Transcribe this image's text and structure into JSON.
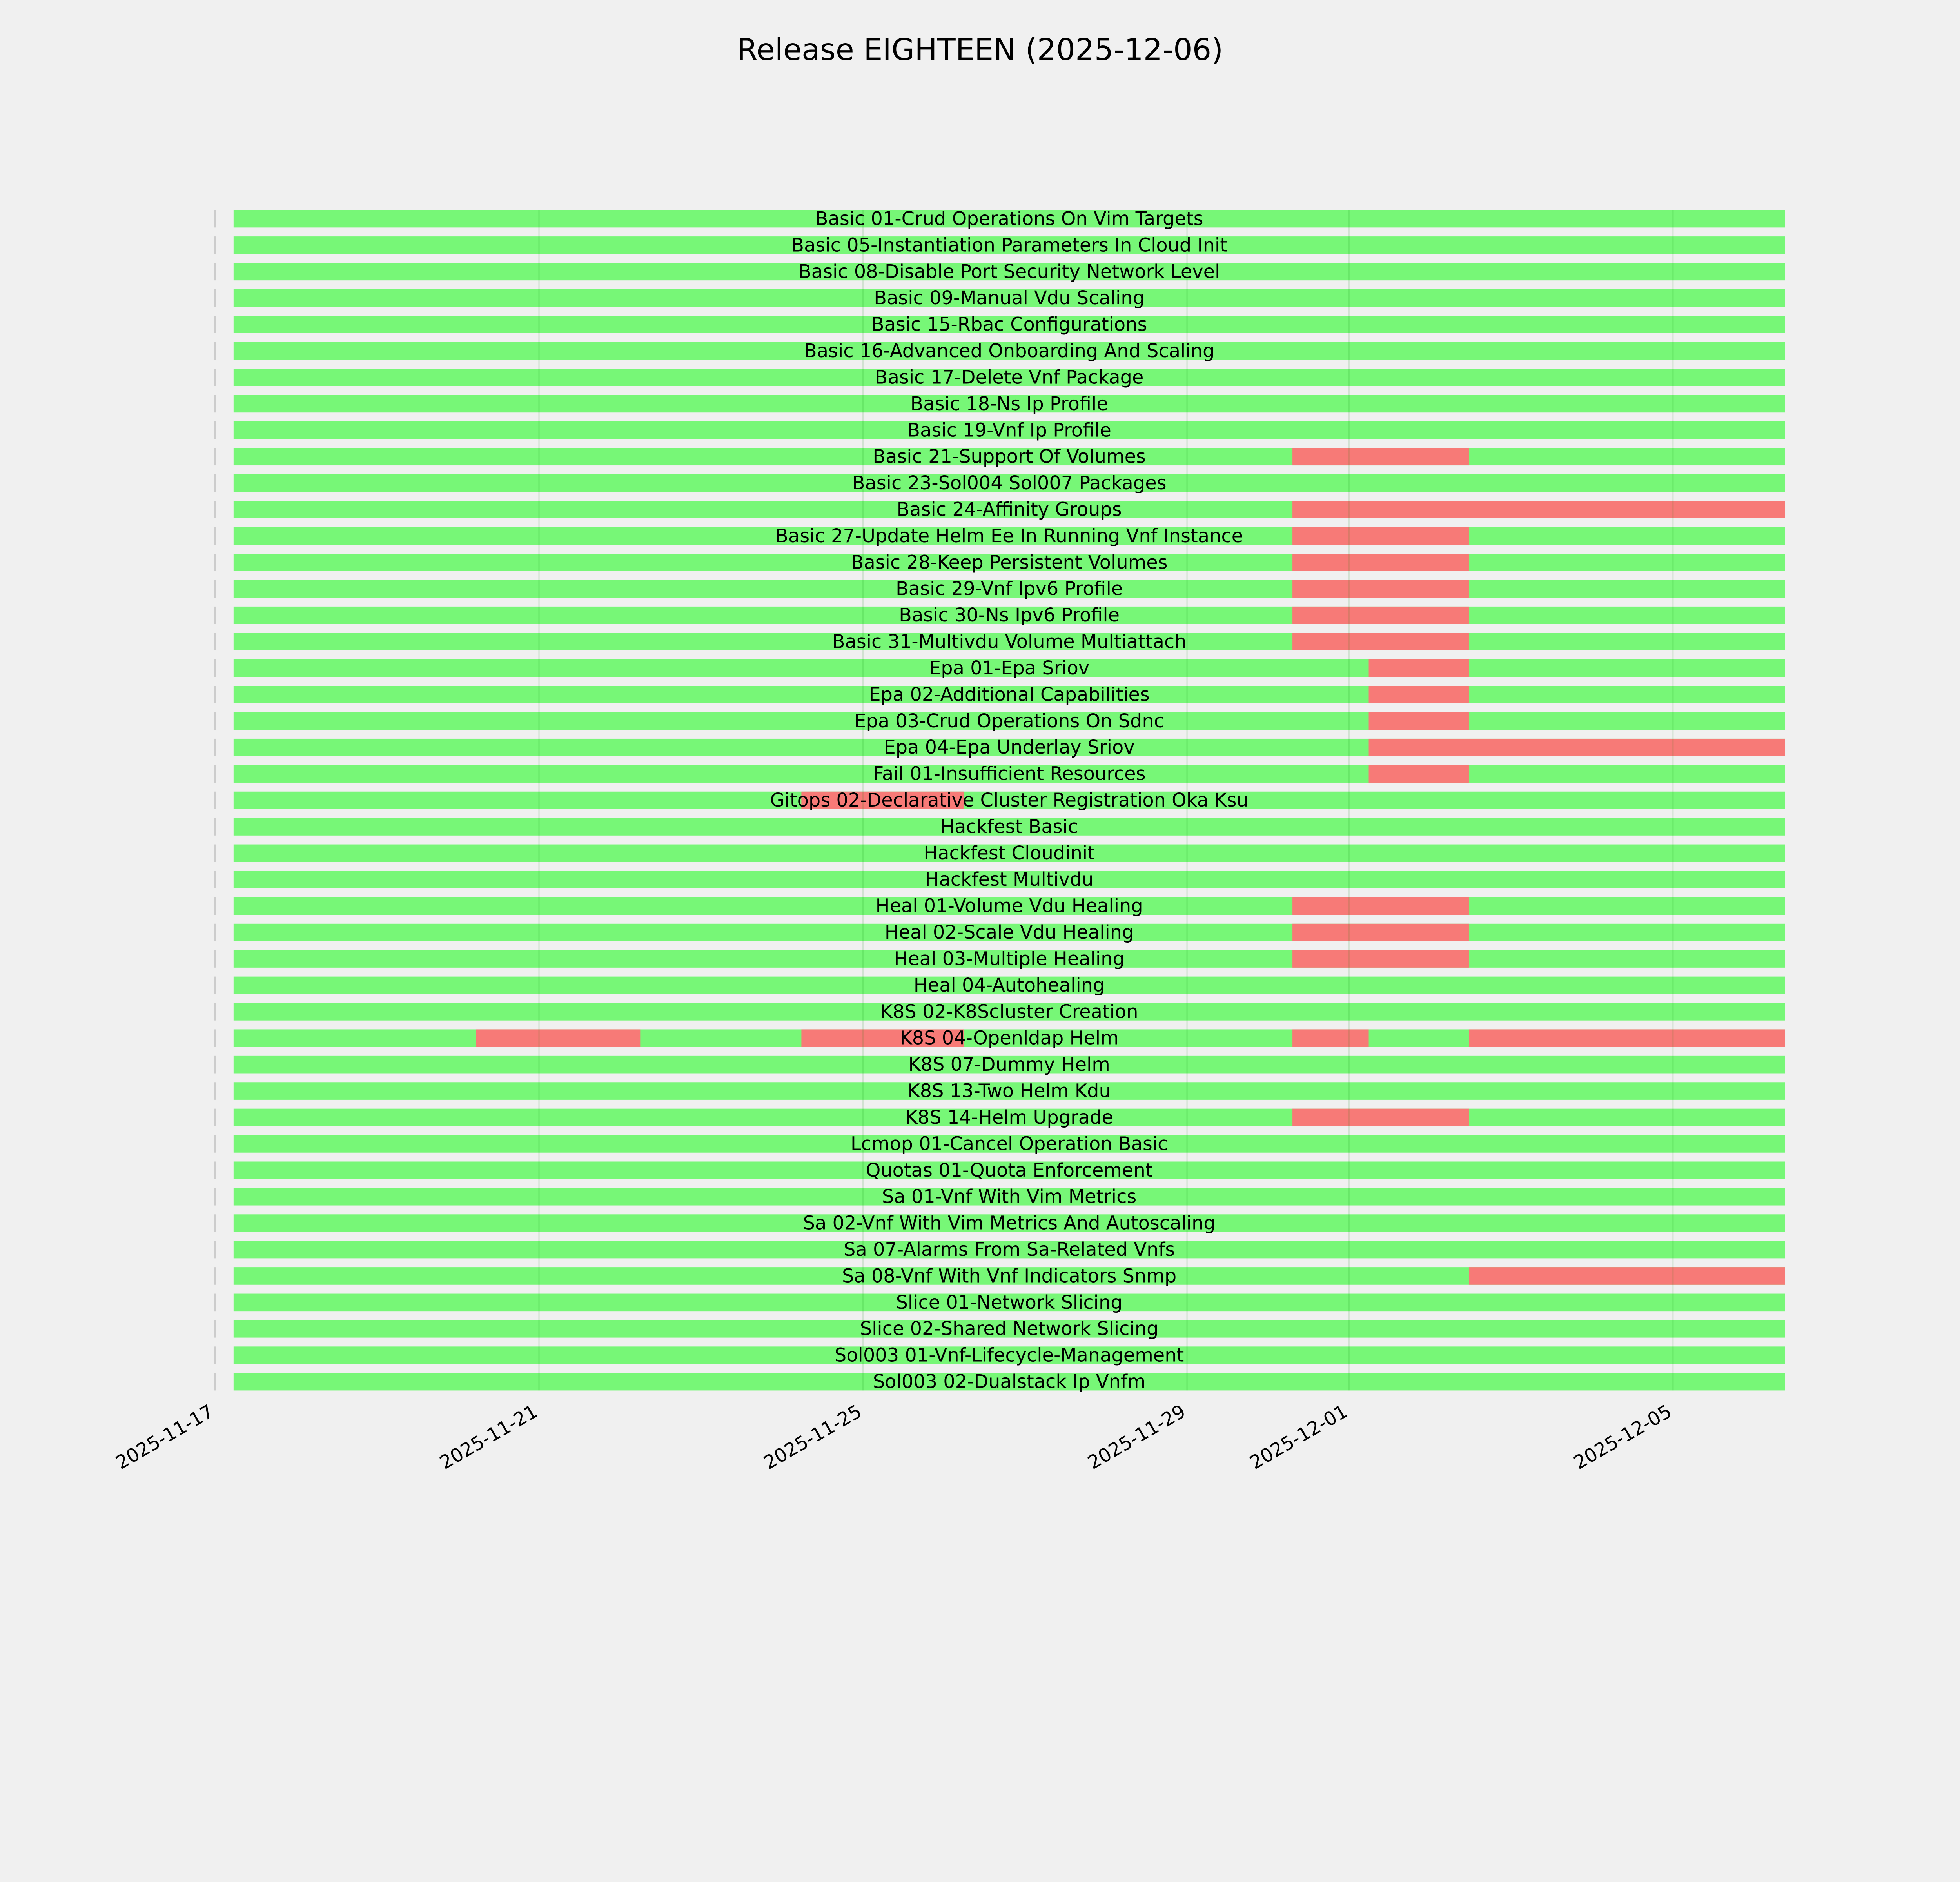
{
  "chart_data": {
    "type": "gantt",
    "title": "Release EIGHTEEN (2025-12-06)",
    "xlabel": "",
    "ylabel": "",
    "x_range": [
      "2025-11-17T00:00",
      "2025-12-06T12:00"
    ],
    "x_ticks": [
      "2025-11-17",
      "2025-11-21",
      "2025-11-25",
      "2025-11-29",
      "2025-12-01",
      "2025-12-05"
    ],
    "grid": true,
    "colors": {
      "pass": "#77f777",
      "fail": "#f77a77",
      "background": "#f0f0f0"
    },
    "span": [
      "2025-11-17T05:30",
      "2025-12-06T09:10"
    ],
    "rows": [
      {
        "name": "Basic 01-Crud Operations On Vim Targets",
        "fail": []
      },
      {
        "name": "Basic 05-Instantiation Parameters In Cloud Init",
        "fail": []
      },
      {
        "name": "Basic 08-Disable Port Security Network Level",
        "fail": []
      },
      {
        "name": "Basic 09-Manual Vdu Scaling",
        "fail": []
      },
      {
        "name": "Basic 15-Rbac Configurations",
        "fail": []
      },
      {
        "name": "Basic 16-Advanced Onboarding And Scaling",
        "fail": []
      },
      {
        "name": "Basic 17-Delete Vnf Package",
        "fail": []
      },
      {
        "name": "Basic 18-Ns Ip Profile",
        "fail": []
      },
      {
        "name": "Basic 19-Vnf Ip Profile",
        "fail": []
      },
      {
        "name": "Basic 21-Support Of Volumes",
        "fail": [
          [
            "2025-11-30T07:15",
            "2025-12-02T11:30"
          ]
        ]
      },
      {
        "name": "Basic 23-Sol004 Sol007 Packages",
        "fail": []
      },
      {
        "name": "Basic 24-Affinity Groups",
        "fail": [
          [
            "2025-11-30T07:15",
            "2025-12-06T09:10"
          ]
        ]
      },
      {
        "name": "Basic 27-Update Helm Ee In Running Vnf Instance",
        "fail": [
          [
            "2025-11-30T07:15",
            "2025-12-02T11:30"
          ]
        ]
      },
      {
        "name": "Basic 28-Keep Persistent Volumes",
        "fail": [
          [
            "2025-11-30T07:15",
            "2025-12-02T11:30"
          ]
        ]
      },
      {
        "name": "Basic 29-Vnf Ipv6 Profile",
        "fail": [
          [
            "2025-11-30T07:15",
            "2025-12-02T11:30"
          ]
        ]
      },
      {
        "name": "Basic 30-Ns Ipv6 Profile",
        "fail": [
          [
            "2025-11-30T07:15",
            "2025-12-02T11:30"
          ]
        ]
      },
      {
        "name": "Basic 31-Multivdu Volume Multiattach",
        "fail": [
          [
            "2025-11-30T07:15",
            "2025-12-02T11:30"
          ]
        ]
      },
      {
        "name": "Epa 01-Epa Sriov",
        "fail": [
          [
            "2025-12-01T05:50",
            "2025-12-02T11:30"
          ]
        ]
      },
      {
        "name": "Epa 02-Additional Capabilities",
        "fail": [
          [
            "2025-12-01T05:50",
            "2025-12-02T11:30"
          ]
        ]
      },
      {
        "name": "Epa 03-Crud Operations On Sdnc",
        "fail": [
          [
            "2025-12-01T05:50",
            "2025-12-02T11:30"
          ]
        ]
      },
      {
        "name": "Epa 04-Epa Underlay Sriov",
        "fail": [
          [
            "2025-12-01T05:50",
            "2025-12-06T09:10"
          ]
        ]
      },
      {
        "name": "Fail 01-Insufficient Resources",
        "fail": [
          [
            "2025-12-01T05:50",
            "2025-12-02T11:30"
          ]
        ]
      },
      {
        "name": "Gitops 02-Declarative Cluster Registration Oka Ksu",
        "fail": [
          [
            "2025-11-24T05:45",
            "2025-11-26T05:50"
          ]
        ]
      },
      {
        "name": "Hackfest Basic",
        "fail": []
      },
      {
        "name": "Hackfest Cloudinit",
        "fail": []
      },
      {
        "name": "Hackfest Multivdu",
        "fail": []
      },
      {
        "name": "Heal 01-Volume Vdu Healing",
        "fail": [
          [
            "2025-11-30T07:15",
            "2025-12-02T11:30"
          ]
        ]
      },
      {
        "name": "Heal 02-Scale Vdu Healing",
        "fail": [
          [
            "2025-11-30T07:15",
            "2025-12-02T11:30"
          ]
        ]
      },
      {
        "name": "Heal 03-Multiple Healing",
        "fail": [
          [
            "2025-11-30T07:15",
            "2025-12-02T11:30"
          ]
        ]
      },
      {
        "name": "Heal 04-Autohealing",
        "fail": []
      },
      {
        "name": "K8S 02-K8Scluster Creation",
        "fail": []
      },
      {
        "name": "K8S 04-Openldap Helm",
        "fail": [
          [
            "2025-11-20T05:25",
            "2025-11-22T06:00"
          ],
          [
            "2025-11-24T05:45",
            "2025-11-26T05:50"
          ],
          [
            "2025-11-30T07:15",
            "2025-12-01T05:50"
          ],
          [
            "2025-12-02T11:30",
            "2025-12-06T09:10"
          ]
        ]
      },
      {
        "name": "K8S 07-Dummy Helm",
        "fail": []
      },
      {
        "name": "K8S 13-Two Helm Kdu",
        "fail": []
      },
      {
        "name": "K8S 14-Helm Upgrade",
        "fail": [
          [
            "2025-11-30T07:15",
            "2025-12-02T11:30"
          ]
        ]
      },
      {
        "name": "Lcmop 01-Cancel Operation Basic",
        "fail": []
      },
      {
        "name": "Quotas 01-Quota Enforcement",
        "fail": []
      },
      {
        "name": "Sa 01-Vnf With Vim Metrics",
        "fail": []
      },
      {
        "name": "Sa 02-Vnf With Vim Metrics And Autoscaling",
        "fail": []
      },
      {
        "name": "Sa 07-Alarms From Sa-Related Vnfs",
        "fail": []
      },
      {
        "name": "Sa 08-Vnf With Vnf Indicators Snmp",
        "fail": [
          [
            "2025-12-02T11:30",
            "2025-12-06T09:10"
          ]
        ]
      },
      {
        "name": "Slice 01-Network Slicing",
        "fail": []
      },
      {
        "name": "Slice 02-Shared Network Slicing",
        "fail": []
      },
      {
        "name": "Sol003 01-Vnf-Lifecycle-Management",
        "fail": []
      },
      {
        "name": "Sol003 02-Dualstack Ip Vnfm",
        "fail": []
      }
    ]
  }
}
